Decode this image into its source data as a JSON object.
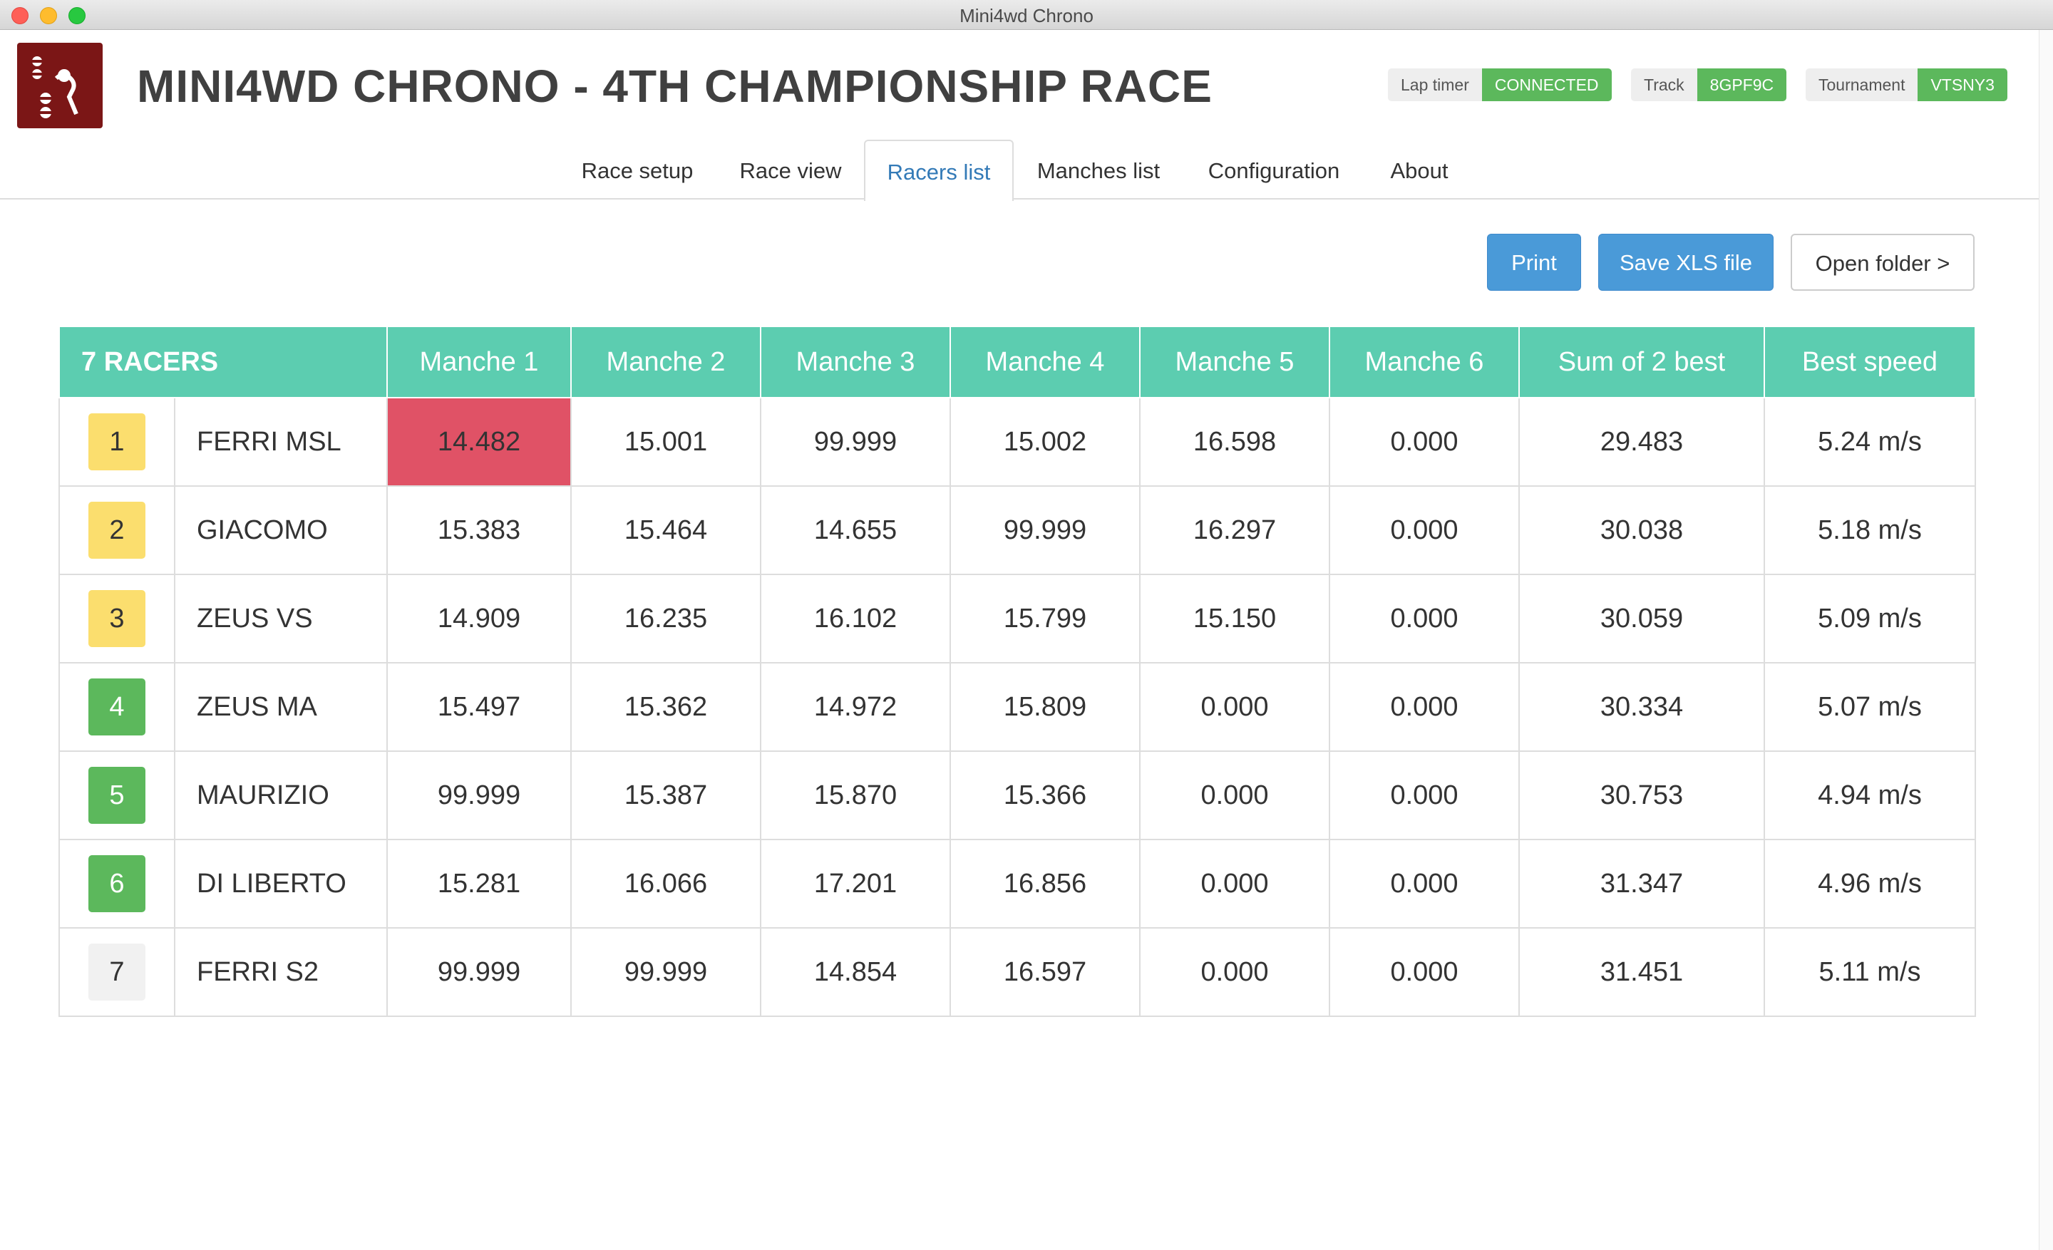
{
  "window": {
    "title": "Mini4wd Chrono"
  },
  "header": {
    "title": "MINI4WD CHRONO - 4TH CHAMPIONSHIP RACE",
    "status": {
      "lap_timer_label": "Lap timer",
      "lap_timer_value": "CONNECTED",
      "track_label": "Track",
      "track_value": "8GPF9C",
      "tournament_label": "Tournament",
      "tournament_value": "VTSNY3"
    }
  },
  "tabs": {
    "race_setup": "Race setup",
    "race_view": "Race view",
    "racers_list": "Racers list",
    "manches_list": "Manches list",
    "configuration": "Configuration",
    "about": "About"
  },
  "toolbar": {
    "print": "Print",
    "save_xls": "Save XLS file",
    "open_folder": "Open folder >"
  },
  "table": {
    "racer_count": "7 RACERS",
    "columns": [
      "Manche 1",
      "Manche 2",
      "Manche 3",
      "Manche 4",
      "Manche 5",
      "Manche 6",
      "Sum of 2 best",
      "Best speed"
    ],
    "rows": [
      {
        "pos": "1",
        "name": "FERRI MSL",
        "m": [
          "14.482",
          "15.001",
          "99.999",
          "15.002",
          "16.598",
          "0.000"
        ],
        "sum": "29.483",
        "speed": "5.24 m/s"
      },
      {
        "pos": "2",
        "name": "GIACOMO",
        "m": [
          "15.383",
          "15.464",
          "14.655",
          "99.999",
          "16.297",
          "0.000"
        ],
        "sum": "30.038",
        "speed": "5.18 m/s"
      },
      {
        "pos": "3",
        "name": "ZEUS VS",
        "m": [
          "14.909",
          "16.235",
          "16.102",
          "15.799",
          "15.150",
          "0.000"
        ],
        "sum": "30.059",
        "speed": "5.09 m/s"
      },
      {
        "pos": "4",
        "name": "ZEUS MA",
        "m": [
          "15.497",
          "15.362",
          "14.972",
          "15.809",
          "0.000",
          "0.000"
        ],
        "sum": "30.334",
        "speed": "5.07 m/s"
      },
      {
        "pos": "5",
        "name": "MAURIZIO",
        "m": [
          "99.999",
          "15.387",
          "15.870",
          "15.366",
          "0.000",
          "0.000"
        ],
        "sum": "30.753",
        "speed": "4.94 m/s"
      },
      {
        "pos": "6",
        "name": "DI LIBERTO",
        "m": [
          "15.281",
          "16.066",
          "17.201",
          "16.856",
          "0.000",
          "0.000"
        ],
        "sum": "31.347",
        "speed": "4.96 m/s"
      },
      {
        "pos": "7",
        "name": "FERRI S2",
        "m": [
          "99.999",
          "99.999",
          "14.854",
          "16.597",
          "0.000",
          "0.000"
        ],
        "sum": "31.451",
        "speed": "5.11 m/s"
      }
    ]
  },
  "colors": {
    "header_teal": "#5ccdb0",
    "best_red": "#e0475f",
    "status_green": "#5cb85c",
    "badge_gold": "#fbde6e"
  }
}
